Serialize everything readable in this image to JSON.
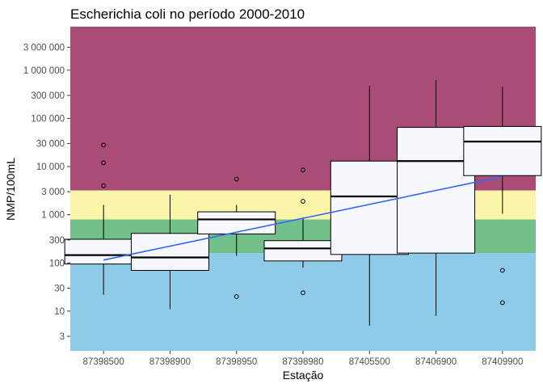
{
  "chart_data": {
    "type": "boxplot",
    "title": "Escherichia coli no período 2000-2010",
    "xlabel": "Estação",
    "ylabel": "NMP/100mL",
    "y_scale": "log10",
    "ylim": [
      1.5,
      8000000
    ],
    "y_ticks": [
      3,
      10,
      30,
      100,
      300,
      1000,
      3000,
      10000,
      30000,
      100000,
      300000,
      1000000,
      3000000
    ],
    "y_tick_labels": [
      "3",
      "10",
      "30",
      "100",
      "300",
      "1 000",
      "3 000",
      "10 000",
      "30 000",
      "100 000",
      "300 000",
      "1 000 000",
      "3 000 000"
    ],
    "bands": [
      {
        "from": 1.5,
        "to": 160,
        "color": "#8ecbe8"
      },
      {
        "from": 160,
        "to": 800,
        "color": "#71c08a"
      },
      {
        "from": 800,
        "to": 3200,
        "color": "#fbf5aa"
      },
      {
        "from": 3200,
        "to": 8000000,
        "color": "#aa4d76"
      }
    ],
    "categories": [
      "87398500",
      "87398900",
      "87398950",
      "87398980",
      "87405500",
      "87406900",
      "87409900"
    ],
    "boxes": [
      {
        "lower_whisker": 22,
        "q1": 95,
        "median": 145,
        "q3": 310,
        "upper_whisker": 1600,
        "outliers": [
          4000,
          12000,
          28000
        ]
      },
      {
        "lower_whisker": 11,
        "q1": 70,
        "median": 130,
        "q3": 410,
        "upper_whisker": 2600,
        "outliers": []
      },
      {
        "lower_whisker": 140,
        "q1": 400,
        "median": 800,
        "q3": 1150,
        "upper_whisker": 1600,
        "outliers": [
          20,
          5500
        ]
      },
      {
        "lower_whisker": 80,
        "q1": 110,
        "median": 200,
        "q3": 290,
        "upper_whisker": 880,
        "outliers": [
          24,
          1900,
          8500
        ]
      },
      {
        "lower_whisker": 5,
        "q1": 150,
        "median": 2400,
        "q3": 13000,
        "upper_whisker": 470000,
        "outliers": []
      },
      {
        "lower_whisker": 8,
        "q1": 160,
        "median": 13000,
        "q3": 65000,
        "upper_whisker": 620000,
        "outliers": []
      },
      {
        "lower_whisker": 1050,
        "q1": 6500,
        "median": 33000,
        "q3": 68000,
        "upper_whisker": 450000,
        "outliers": [
          15,
          70
        ]
      }
    ],
    "trend_line": {
      "color": "#3366ff",
      "from": {
        "x": "87398500",
        "y": 115
      },
      "to": {
        "x": "87409900",
        "y": 6200
      }
    },
    "colors": {
      "box_fill": "#f7f8fe",
      "panel": "#ffffff"
    }
  }
}
